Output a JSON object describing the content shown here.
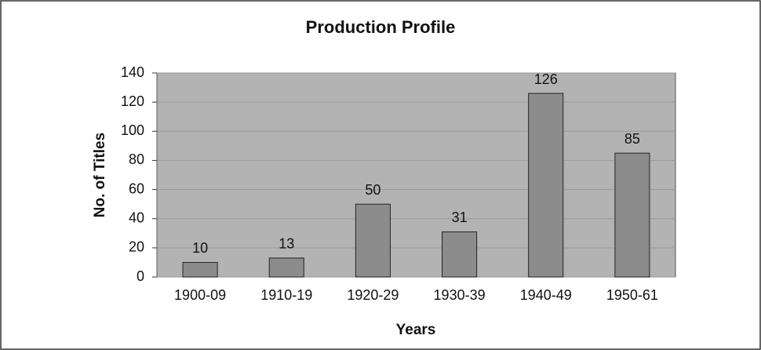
{
  "chart_data": {
    "type": "bar",
    "title": "Production Profile",
    "x_label": "Years",
    "y_label": "No. of Titles",
    "categories": [
      "1900-09",
      "1910-19",
      "1920-29",
      "1930-39",
      "1940-49",
      "1950-61"
    ],
    "values": [
      10,
      13,
      50,
      31,
      126,
      85
    ],
    "color": "#8c8c8c",
    "ylim": [
      0,
      140
    ],
    "yticks": [
      0,
      20,
      40,
      60,
      80,
      100,
      120,
      140
    ],
    "grid": true
  }
}
